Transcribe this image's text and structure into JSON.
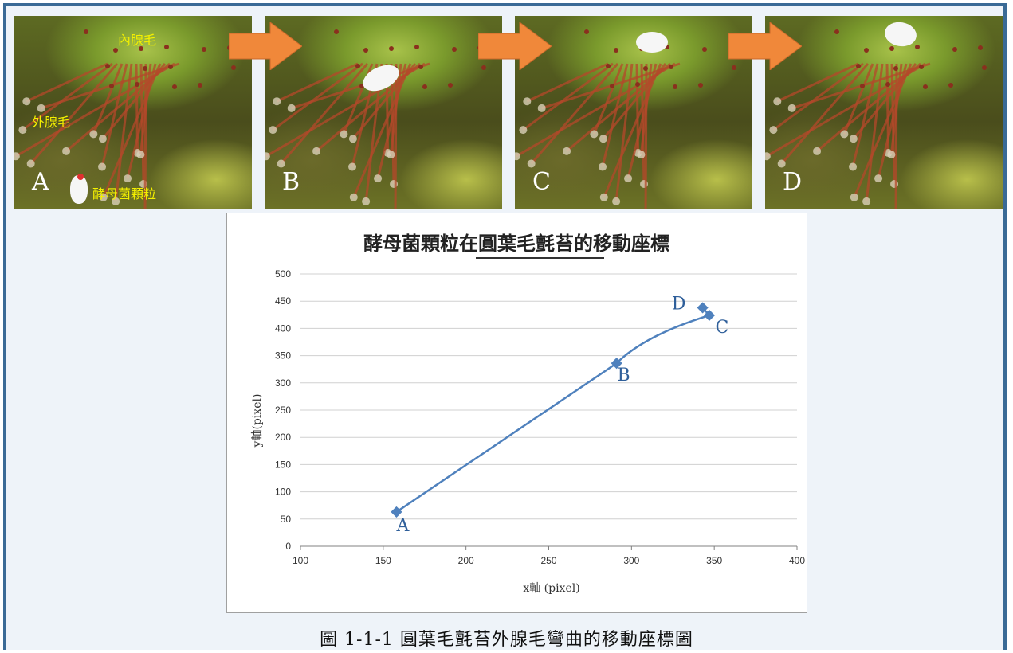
{
  "panels": [
    {
      "letter": "A",
      "labels": [
        "內腺毛",
        "外腺毛",
        "酵母菌顆粒"
      ]
    },
    {
      "letter": "B"
    },
    {
      "letter": "C"
    },
    {
      "letter": "D"
    }
  ],
  "colors": {
    "frame": "#3a6a96",
    "arrow": "#f0883a",
    "series": "#4f81bd",
    "label_yellow": "#f4f000"
  },
  "chart_data": {
    "type": "scatter",
    "title": "酵母菌顆粒在圓葉毛氈苔的移動座標",
    "title_underlined": "圓葉毛氈苔",
    "xlabel": "x軸 (pixel)",
    "ylabel": "y軸(pixel)",
    "xlim": [
      100,
      400
    ],
    "ylim": [
      0,
      500
    ],
    "xticks": [
      "100",
      "150",
      "200",
      "250",
      "300",
      "350",
      "400"
    ],
    "yticks": [
      "0",
      "50",
      "100",
      "150",
      "200",
      "250",
      "300",
      "350",
      "400",
      "450",
      "500"
    ],
    "grid": true,
    "smooth_line": true,
    "points": [
      {
        "label": "A",
        "x": 158,
        "y": 63
      },
      {
        "label": "B",
        "x": 291,
        "y": 336
      },
      {
        "label": "C",
        "x": 347,
        "y": 424
      },
      {
        "label": "D",
        "x": 343,
        "y": 438
      }
    ]
  },
  "caption": "圖 1-1-1 圓葉毛氈苔外腺毛彎曲的移動座標圖"
}
